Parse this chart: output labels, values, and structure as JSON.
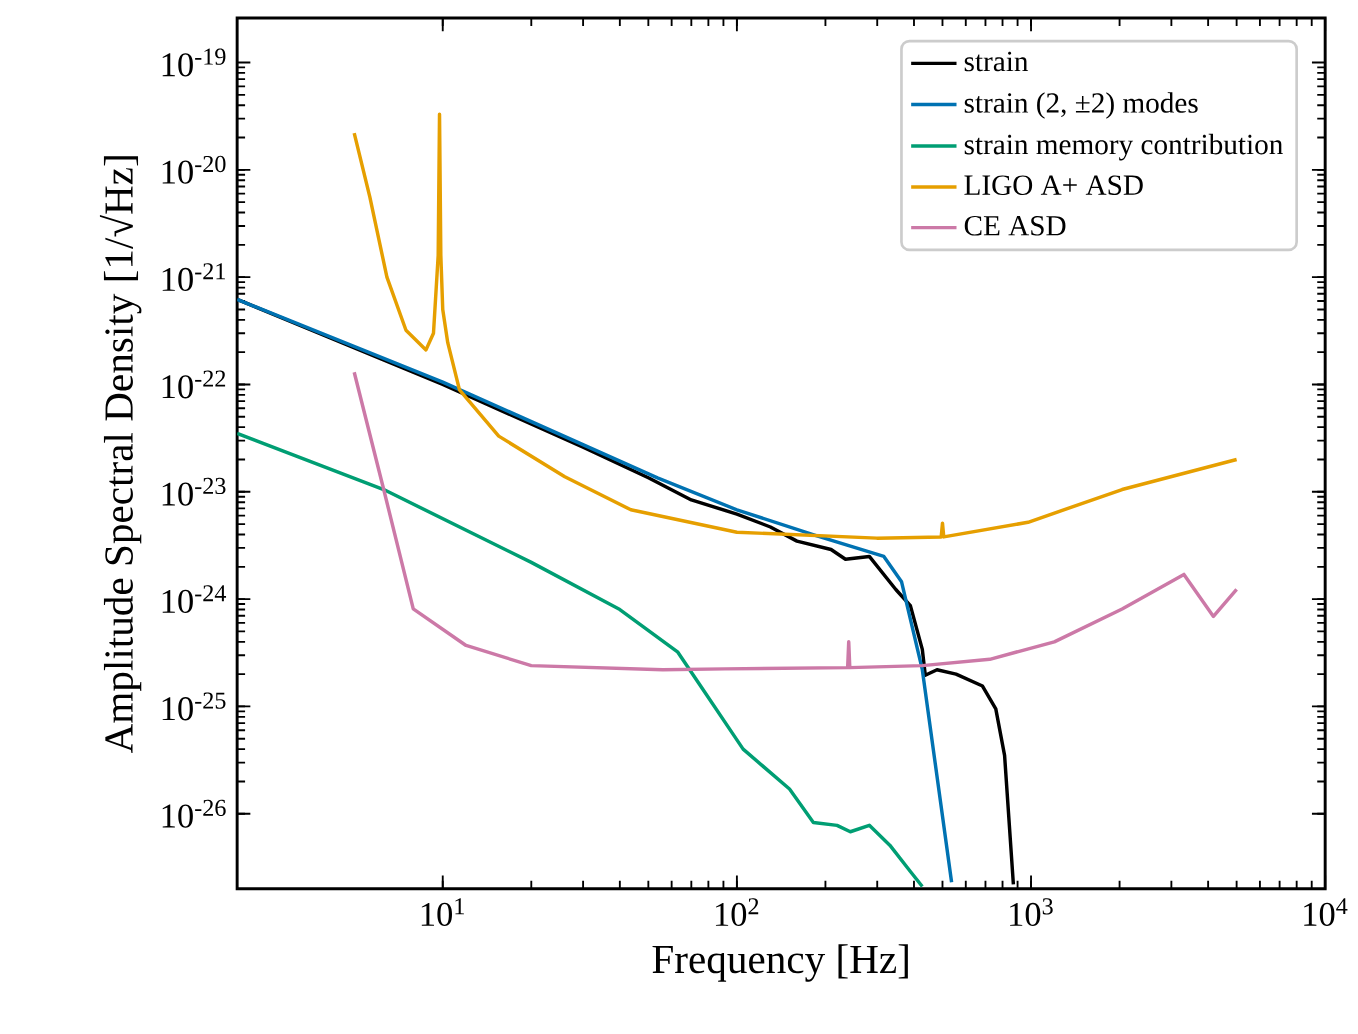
{
  "chart_data": {
    "type": "line",
    "xlabel": "Frequency [Hz]",
    "ylabel": "Amplitude Spectral Density [1/√Hz]",
    "log": "xy",
    "legend": "top right",
    "xlim": [
      2,
      10000
    ],
    "ylim": [
      2e-27,
      2.6e-19
    ],
    "xticks": [
      {
        "value": 10,
        "label": "10$^{1}$"
      },
      {
        "value": 100,
        "label": "10$^{2}$"
      },
      {
        "value": 1000,
        "label": "10$^{3}$"
      },
      {
        "value": 10000,
        "label": "10$^{4}$"
      }
    ],
    "yticks": [
      {
        "value": 1e-26,
        "label": "10$^{-26}$"
      },
      {
        "value": 1e-25,
        "label": "10$^{-25}$"
      },
      {
        "value": 1e-24,
        "label": "10$^{-24}$"
      },
      {
        "value": 1e-23,
        "label": "10$^{-23}$"
      },
      {
        "value": 1e-22,
        "label": "10$^{-22}$"
      },
      {
        "value": 1e-21,
        "label": "10$^{-21}$"
      },
      {
        "value": 1e-20,
        "label": "10$^{-20}$"
      },
      {
        "value": 1e-19,
        "label": "10$^{-19}$"
      }
    ],
    "series": [
      {
        "name": "strain",
        "color": "#000000",
        "x": [
          2,
          10,
          30,
          50,
          70,
          100,
          130,
          160,
          209,
          234,
          282,
          347,
          389,
          427,
          437,
          479,
          556,
          684,
          759,
          813,
          871
        ],
        "values": [
          6.2e-22,
          1e-22,
          2.6e-23,
          1.35e-23,
          8.4e-24,
          6.2e-24,
          4.7e-24,
          3.47e-24,
          2.9e-24,
          2.35e-24,
          2.5e-24,
          1.23e-24,
          8.7e-25,
          3.4e-25,
          1.95e-25,
          2.2e-25,
          2e-25,
          1.55e-25,
          9.5e-26,
          3.5e-26,
          2.2e-27
        ]
      },
      {
        "name": "strain (2, ±2) modes",
        "color": "#0072b2",
        "x": [
          2,
          10,
          53.7,
          100,
          186,
          316,
          363,
          427,
          537
        ],
        "values": [
          6.2e-22,
          1.05e-22,
          1.35e-23,
          6.8e-24,
          3.9e-24,
          2.5e-24,
          1.45e-24,
          2.2e-25,
          2.3e-27
        ]
      },
      {
        "name": "strain memory contribution",
        "color": "#009e73",
        "x": [
          2,
          6.3,
          20,
          40,
          63,
          74,
          105,
          151,
          182,
          219,
          243,
          282,
          331,
          389,
          427
        ],
        "values": [
          3.5e-23,
          1.05e-23,
          2.2e-24,
          8e-25,
          3.2e-25,
          1.66e-25,
          4e-26,
          1.7e-26,
          8.3e-27,
          7.8e-27,
          6.8e-27,
          7.8e-27,
          5.1e-27,
          2.9e-27,
          2.1e-27
        ]
      },
      {
        "name": "LIGO A+ ASD",
        "color": "#e69f00",
        "x": [
          5,
          5.65,
          6.46,
          7.5,
          8.77,
          9.3,
          9.65,
          9.75,
          9.85,
          10,
          10.4,
          11.4,
          15.5,
          26,
          43.6,
          100,
          299,
          495,
          500,
          505,
          977,
          2040,
          5000
        ],
        "values": [
          2.2e-20,
          5.6e-21,
          1e-21,
          3.2e-22,
          2.1e-22,
          3e-22,
          1.6e-21,
          3.3e-20,
          1.6e-21,
          5e-22,
          2.45e-22,
          8.9e-23,
          3.3e-23,
          1.38e-23,
          6.8e-24,
          4.2e-24,
          3.7e-24,
          3.8e-24,
          5.1e-24,
          3.8e-24,
          5.2e-24,
          1.05e-23,
          2e-23
        ]
      },
      {
        "name": "CE ASD",
        "color": "#cc79a7",
        "x": [
          5,
          6.3,
          7.94,
          12,
          20,
          56,
          91,
          238,
          240,
          242,
          427,
          724,
          1200,
          2040,
          3310,
          4170,
          5000
        ],
        "values": [
          1.3e-22,
          1.05e-23,
          8.1e-25,
          3.7e-25,
          2.4e-25,
          2.2e-25,
          2.24e-25,
          2.3e-25,
          4e-25,
          2.3e-25,
          2.4e-25,
          2.75e-25,
          4e-25,
          8.1e-25,
          1.7e-24,
          6.9e-25,
          1.23e-24
        ]
      }
    ]
  }
}
